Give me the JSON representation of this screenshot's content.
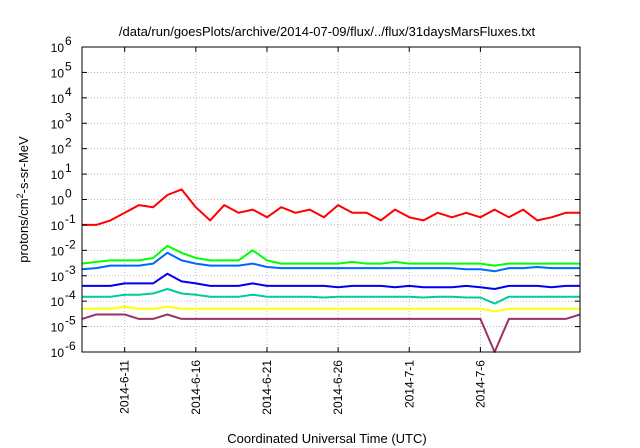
{
  "chart_data": {
    "type": "line",
    "title": "/data/run/goesPlots/archive/2014-07-09/flux/../flux/31daysMarsFluxes.txt",
    "xlabel": "Coordinated Universal Time (UTC)",
    "ylabel": {
      "base": "protons/cm",
      "sup": "2",
      "rest": "-s-sr-MeV"
    },
    "yscale": "log",
    "ylim": [
      1e-06,
      1000000.0
    ],
    "xlim": [
      "2014-06-08",
      "2014-07-13"
    ],
    "grid": true,
    "x_ticks": [
      "2014-6-11",
      "2014-6-16",
      "2014-6-21",
      "2014-6-26",
      "2014-7-1",
      "2014-7-6"
    ],
    "y_ticks": [
      {
        "value": 1e-06,
        "base": "10",
        "exp": "-6"
      },
      {
        "value": 1e-05,
        "base": "10",
        "exp": "-5"
      },
      {
        "value": 0.0001,
        "base": "10",
        "exp": "-4"
      },
      {
        "value": 0.001,
        "base": "10",
        "exp": "-3"
      },
      {
        "value": 0.01,
        "base": "10",
        "exp": "-2"
      },
      {
        "value": 0.1,
        "base": "10",
        "exp": "-1"
      },
      {
        "value": 1,
        "base": "10",
        "exp": "0"
      },
      {
        "value": 10,
        "base": "10",
        "exp": "1"
      },
      {
        "value": 100,
        "base": "10",
        "exp": "2"
      },
      {
        "value": 1000,
        "base": "10",
        "exp": "3"
      },
      {
        "value": 10000,
        "base": "10",
        "exp": "4"
      },
      {
        "value": 100000,
        "base": "10",
        "exp": "5"
      },
      {
        "value": 1000000,
        "base": "10",
        "exp": "6"
      }
    ],
    "series": [
      {
        "color": "#ff0000",
        "x": [
          "2014-06-08",
          "2014-06-09",
          "2014-06-10",
          "2014-06-11",
          "2014-06-12",
          "2014-06-13",
          "2014-06-14",
          "2014-06-15",
          "2014-06-16",
          "2014-06-17",
          "2014-06-18",
          "2014-06-19",
          "2014-06-20",
          "2014-06-21",
          "2014-06-22",
          "2014-06-23",
          "2014-06-24",
          "2014-06-25",
          "2014-06-26",
          "2014-06-27",
          "2014-06-28",
          "2014-06-29",
          "2014-06-30",
          "2014-07-01",
          "2014-07-02",
          "2014-07-03",
          "2014-07-04",
          "2014-07-05",
          "2014-07-06",
          "2014-07-07",
          "2014-07-08",
          "2014-07-09",
          "2014-07-10",
          "2014-07-11",
          "2014-07-12",
          "2014-07-13"
        ],
        "values": [
          0.1,
          0.1,
          0.15,
          0.3,
          0.6,
          0.5,
          1.5,
          2.5,
          0.5,
          0.15,
          0.6,
          0.3,
          0.4,
          0.2,
          0.5,
          0.3,
          0.4,
          0.2,
          0.6,
          0.3,
          0.3,
          0.15,
          0.4,
          0.2,
          0.15,
          0.3,
          0.2,
          0.3,
          0.2,
          0.4,
          0.2,
          0.4,
          0.15,
          0.2,
          0.3,
          0.3
        ]
      },
      {
        "color": "#00ff00",
        "x": [
          "2014-06-08",
          "2014-06-09",
          "2014-06-10",
          "2014-06-11",
          "2014-06-12",
          "2014-06-13",
          "2014-06-14",
          "2014-06-15",
          "2014-06-16",
          "2014-06-17",
          "2014-06-18",
          "2014-06-19",
          "2014-06-20",
          "2014-06-21",
          "2014-06-22",
          "2014-06-23",
          "2014-06-24",
          "2014-06-25",
          "2014-06-26",
          "2014-06-27",
          "2014-06-28",
          "2014-06-29",
          "2014-06-30",
          "2014-07-01",
          "2014-07-02",
          "2014-07-03",
          "2014-07-04",
          "2014-07-05",
          "2014-07-06",
          "2014-07-07",
          "2014-07-08",
          "2014-07-09",
          "2014-07-10",
          "2014-07-11",
          "2014-07-12",
          "2014-07-13"
        ],
        "values": [
          0.003,
          0.0035,
          0.004,
          0.004,
          0.004,
          0.005,
          0.015,
          0.008,
          0.005,
          0.004,
          0.004,
          0.004,
          0.01,
          0.004,
          0.003,
          0.003,
          0.003,
          0.003,
          0.003,
          0.0035,
          0.003,
          0.003,
          0.0035,
          0.003,
          0.003,
          0.003,
          0.003,
          0.003,
          0.003,
          0.0025,
          0.003,
          0.003,
          0.003,
          0.003,
          0.003,
          0.003
        ]
      },
      {
        "color": "#0066ff",
        "x": [
          "2014-06-08",
          "2014-06-09",
          "2014-06-10",
          "2014-06-11",
          "2014-06-12",
          "2014-06-13",
          "2014-06-14",
          "2014-06-15",
          "2014-06-16",
          "2014-06-17",
          "2014-06-18",
          "2014-06-19",
          "2014-06-20",
          "2014-06-21",
          "2014-06-22",
          "2014-06-23",
          "2014-06-24",
          "2014-06-25",
          "2014-06-26",
          "2014-06-27",
          "2014-06-28",
          "2014-06-29",
          "2014-06-30",
          "2014-07-01",
          "2014-07-02",
          "2014-07-03",
          "2014-07-04",
          "2014-07-05",
          "2014-07-06",
          "2014-07-07",
          "2014-07-08",
          "2014-07-09",
          "2014-07-10",
          "2014-07-11",
          "2014-07-12",
          "2014-07-13"
        ],
        "values": [
          0.0018,
          0.002,
          0.0025,
          0.0025,
          0.0025,
          0.003,
          0.008,
          0.004,
          0.003,
          0.0025,
          0.0025,
          0.0025,
          0.003,
          0.0022,
          0.002,
          0.002,
          0.002,
          0.002,
          0.002,
          0.002,
          0.002,
          0.002,
          0.002,
          0.002,
          0.002,
          0.002,
          0.002,
          0.0018,
          0.0018,
          0.0015,
          0.002,
          0.002,
          0.0022,
          0.002,
          0.002,
          0.002
        ]
      },
      {
        "color": "#0000ee",
        "x": [
          "2014-06-08",
          "2014-06-09",
          "2014-06-10",
          "2014-06-11",
          "2014-06-12",
          "2014-06-13",
          "2014-06-14",
          "2014-06-15",
          "2014-06-16",
          "2014-06-17",
          "2014-06-18",
          "2014-06-19",
          "2014-06-20",
          "2014-06-21",
          "2014-06-22",
          "2014-06-23",
          "2014-06-24",
          "2014-06-25",
          "2014-06-26",
          "2014-06-27",
          "2014-06-28",
          "2014-06-29",
          "2014-06-30",
          "2014-07-01",
          "2014-07-02",
          "2014-07-03",
          "2014-07-04",
          "2014-07-05",
          "2014-07-06",
          "2014-07-07",
          "2014-07-08",
          "2014-07-09",
          "2014-07-10",
          "2014-07-11",
          "2014-07-12",
          "2014-07-13"
        ],
        "values": [
          0.0004,
          0.0004,
          0.0004,
          0.0005,
          0.0005,
          0.0005,
          0.0012,
          0.0006,
          0.0005,
          0.0004,
          0.0004,
          0.0004,
          0.0005,
          0.0004,
          0.0004,
          0.0004,
          0.0004,
          0.0004,
          0.00035,
          0.0004,
          0.0004,
          0.0004,
          0.00035,
          0.0004,
          0.00035,
          0.00035,
          0.00035,
          0.0004,
          0.00035,
          0.0003,
          0.0004,
          0.0004,
          0.0004,
          0.00035,
          0.0004,
          0.0004
        ]
      },
      {
        "color": "#00cc99",
        "x": [
          "2014-06-08",
          "2014-06-09",
          "2014-06-10",
          "2014-06-11",
          "2014-06-12",
          "2014-06-13",
          "2014-06-14",
          "2014-06-15",
          "2014-06-16",
          "2014-06-17",
          "2014-06-18",
          "2014-06-19",
          "2014-06-20",
          "2014-06-21",
          "2014-06-22",
          "2014-06-23",
          "2014-06-24",
          "2014-06-25",
          "2014-06-26",
          "2014-06-27",
          "2014-06-28",
          "2014-06-29",
          "2014-06-30",
          "2014-07-01",
          "2014-07-02",
          "2014-07-03",
          "2014-07-04",
          "2014-07-05",
          "2014-07-06",
          "2014-07-07",
          "2014-07-08",
          "2014-07-09",
          "2014-07-10",
          "2014-07-11",
          "2014-07-12",
          "2014-07-13"
        ],
        "values": [
          0.00015,
          0.00015,
          0.00015,
          0.00018,
          0.00018,
          0.0002,
          0.0003,
          0.0002,
          0.00018,
          0.00015,
          0.00015,
          0.00015,
          0.00018,
          0.00015,
          0.00015,
          0.00015,
          0.00015,
          0.00014,
          0.00015,
          0.00015,
          0.00015,
          0.00015,
          0.00015,
          0.00015,
          0.00014,
          0.00015,
          0.00015,
          0.00014,
          0.00014,
          8e-05,
          0.00015,
          0.00015,
          0.00015,
          0.00015,
          0.00015,
          0.00015
        ]
      },
      {
        "color": "#ffff00",
        "x": [
          "2014-06-08",
          "2014-06-09",
          "2014-06-10",
          "2014-06-11",
          "2014-06-12",
          "2014-06-13",
          "2014-06-14",
          "2014-06-15",
          "2014-06-16",
          "2014-06-17",
          "2014-06-18",
          "2014-06-19",
          "2014-06-20",
          "2014-06-21",
          "2014-06-22",
          "2014-06-23",
          "2014-06-24",
          "2014-06-25",
          "2014-06-26",
          "2014-06-27",
          "2014-06-28",
          "2014-06-29",
          "2014-06-30",
          "2014-07-01",
          "2014-07-02",
          "2014-07-03",
          "2014-07-04",
          "2014-07-05",
          "2014-07-06",
          "2014-07-07",
          "2014-07-08",
          "2014-07-09",
          "2014-07-10",
          "2014-07-11",
          "2014-07-12",
          "2014-07-13"
        ],
        "values": [
          5e-05,
          5e-05,
          5e-05,
          6e-05,
          5e-05,
          5e-05,
          6e-05,
          5e-05,
          5e-05,
          5e-05,
          5e-05,
          5e-05,
          5e-05,
          5e-05,
          5e-05,
          5e-05,
          5e-05,
          5e-05,
          5e-05,
          5e-05,
          5e-05,
          5e-05,
          5e-05,
          5e-05,
          5e-05,
          5e-05,
          5e-05,
          5e-05,
          5e-05,
          4e-05,
          5e-05,
          5e-05,
          5e-05,
          5e-05,
          5e-05,
          5e-05
        ]
      },
      {
        "color": "#993366",
        "x": [
          "2014-06-08",
          "2014-06-09",
          "2014-06-10",
          "2014-06-11",
          "2014-06-12",
          "2014-06-13",
          "2014-06-14",
          "2014-06-15",
          "2014-06-16",
          "2014-06-17",
          "2014-06-18",
          "2014-06-19",
          "2014-06-20",
          "2014-06-21",
          "2014-06-22",
          "2014-06-23",
          "2014-06-24",
          "2014-06-25",
          "2014-06-26",
          "2014-06-27",
          "2014-06-28",
          "2014-06-29",
          "2014-06-30",
          "2014-07-01",
          "2014-07-02",
          "2014-07-03",
          "2014-07-04",
          "2014-07-05",
          "2014-07-06",
          "2014-07-07",
          "2014-07-08",
          "2014-07-09",
          "2014-07-10",
          "2014-07-11",
          "2014-07-12",
          "2014-07-13"
        ],
        "values": [
          2e-05,
          3e-05,
          3e-05,
          3e-05,
          2e-05,
          2e-05,
          3e-05,
          2e-05,
          2e-05,
          2e-05,
          2e-05,
          2e-05,
          2e-05,
          2e-05,
          2e-05,
          2e-05,
          2e-05,
          2e-05,
          2e-05,
          2e-05,
          2e-05,
          2e-05,
          2e-05,
          2e-05,
          2e-05,
          2e-05,
          2e-05,
          2e-05,
          2e-05,
          1e-06,
          2e-05,
          2e-05,
          2e-05,
          2e-05,
          2e-05,
          3e-05
        ]
      }
    ]
  }
}
